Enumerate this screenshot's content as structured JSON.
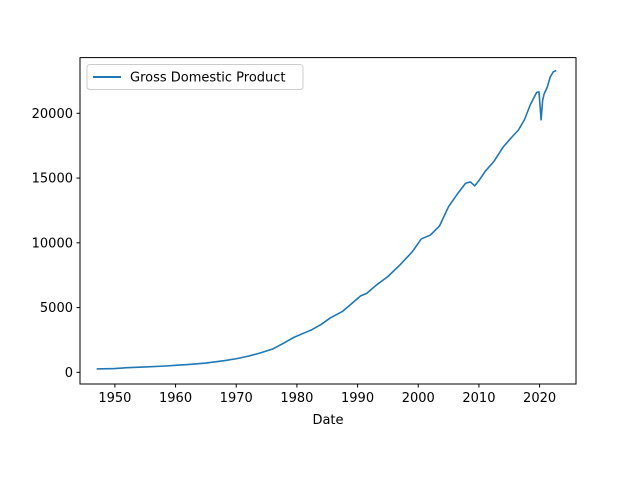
{
  "chart_data": {
    "type": "line",
    "title": "",
    "xlabel": "Date",
    "ylabel": "",
    "xlim": [
      1944.25,
      2026.0
    ],
    "ylim": [
      -900,
      24300
    ],
    "xticks": [
      1950,
      1960,
      1970,
      1980,
      1990,
      2000,
      2010,
      2020
    ],
    "yticks": [
      0,
      5000,
      10000,
      15000,
      20000
    ],
    "grid": false,
    "legend": {
      "placement": "upper-left"
    },
    "series": [
      {
        "name": "Gross Domestic Product",
        "color": "#1f77b4",
        "x": [
          1947.0,
          1950.0,
          1952.0,
          1955.0,
          1958.0,
          1960.0,
          1962.0,
          1965.0,
          1968.0,
          1970.0,
          1972.0,
          1974.0,
          1976.0,
          1978.0,
          1979.5,
          1981.5,
          1982.5,
          1984.0,
          1985.5,
          1987.5,
          1989.5,
          1990.5,
          1991.5,
          1993.0,
          1995.0,
          1997.0,
          1999.0,
          2000.5,
          2002.0,
          2003.5,
          2005.0,
          2006.5,
          2007.8,
          2008.6,
          2009.3,
          2010.0,
          2011.0,
          2012.5,
          2014.0,
          2015.5,
          2016.5,
          2017.5,
          2018.5,
          2019.5,
          2019.9,
          2020.25,
          2020.5,
          2020.75,
          2021.25,
          2021.75,
          2022.25,
          2022.75
        ],
        "values": [
          260,
          290,
          360,
          420,
          480,
          540,
          600,
          720,
          900,
          1050,
          1250,
          1500,
          1800,
          2300,
          2700,
          3100,
          3300,
          3700,
          4200,
          4700,
          5500,
          5900,
          6100,
          6700,
          7400,
          8300,
          9300,
          10300,
          10600,
          11300,
          12800,
          13800,
          14600,
          14700,
          14400,
          14800,
          15500,
          16300,
          17400,
          18200,
          18700,
          19500,
          20700,
          21600,
          21650,
          19500,
          21000,
          21500,
          22000,
          22800,
          23200,
          23300
        ]
      }
    ]
  }
}
